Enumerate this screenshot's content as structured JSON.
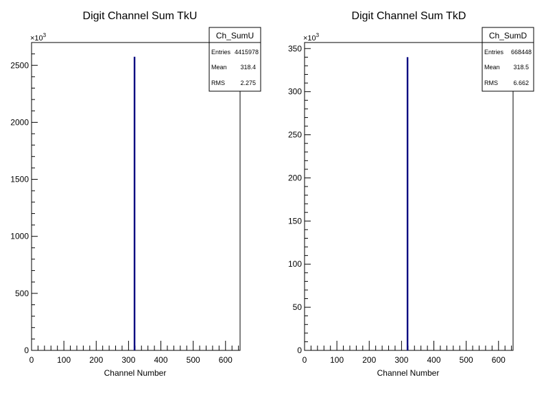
{
  "chart_data": [
    {
      "type": "bar",
      "title": "Digit Channel Sum TkU",
      "xlabel": "Channel Number",
      "ylabel": "",
      "y_exponent_label": "×10",
      "y_exponent_power": "3",
      "xlim": [
        0,
        645
      ],
      "ylim": [
        0,
        2700
      ],
      "x_ticks": [
        0,
        100,
        200,
        300,
        400,
        500,
        600
      ],
      "y_ticks": [
        0,
        500,
        1000,
        1500,
        2000,
        2500
      ],
      "bins": [
        {
          "x": 318,
          "value": 2575
        }
      ],
      "line_color": "#000080",
      "stats": {
        "name": "Ch_SumU",
        "rows": [
          {
            "label": "Entries",
            "value": "4415978"
          },
          {
            "label": "Mean",
            "value": "318.4"
          },
          {
            "label": "RMS",
            "value": "2.275"
          }
        ]
      }
    },
    {
      "type": "bar",
      "title": "Digit Channel Sum TkD",
      "xlabel": "Channel Number",
      "ylabel": "",
      "y_exponent_label": "×10",
      "y_exponent_power": "3",
      "xlim": [
        0,
        645
      ],
      "ylim": [
        0,
        357
      ],
      "x_ticks": [
        0,
        100,
        200,
        300,
        400,
        500,
        600
      ],
      "y_ticks": [
        0,
        50,
        100,
        150,
        200,
        250,
        300,
        350
      ],
      "bins": [
        {
          "x": 318,
          "value": 340
        }
      ],
      "line_color": "#000080",
      "stats": {
        "name": "Ch_SumD",
        "rows": [
          {
            "label": "Entries",
            "value": "668448"
          },
          {
            "label": "Mean",
            "value": "318.5"
          },
          {
            "label": "RMS",
            "value": "6.662"
          }
        ]
      }
    }
  ]
}
